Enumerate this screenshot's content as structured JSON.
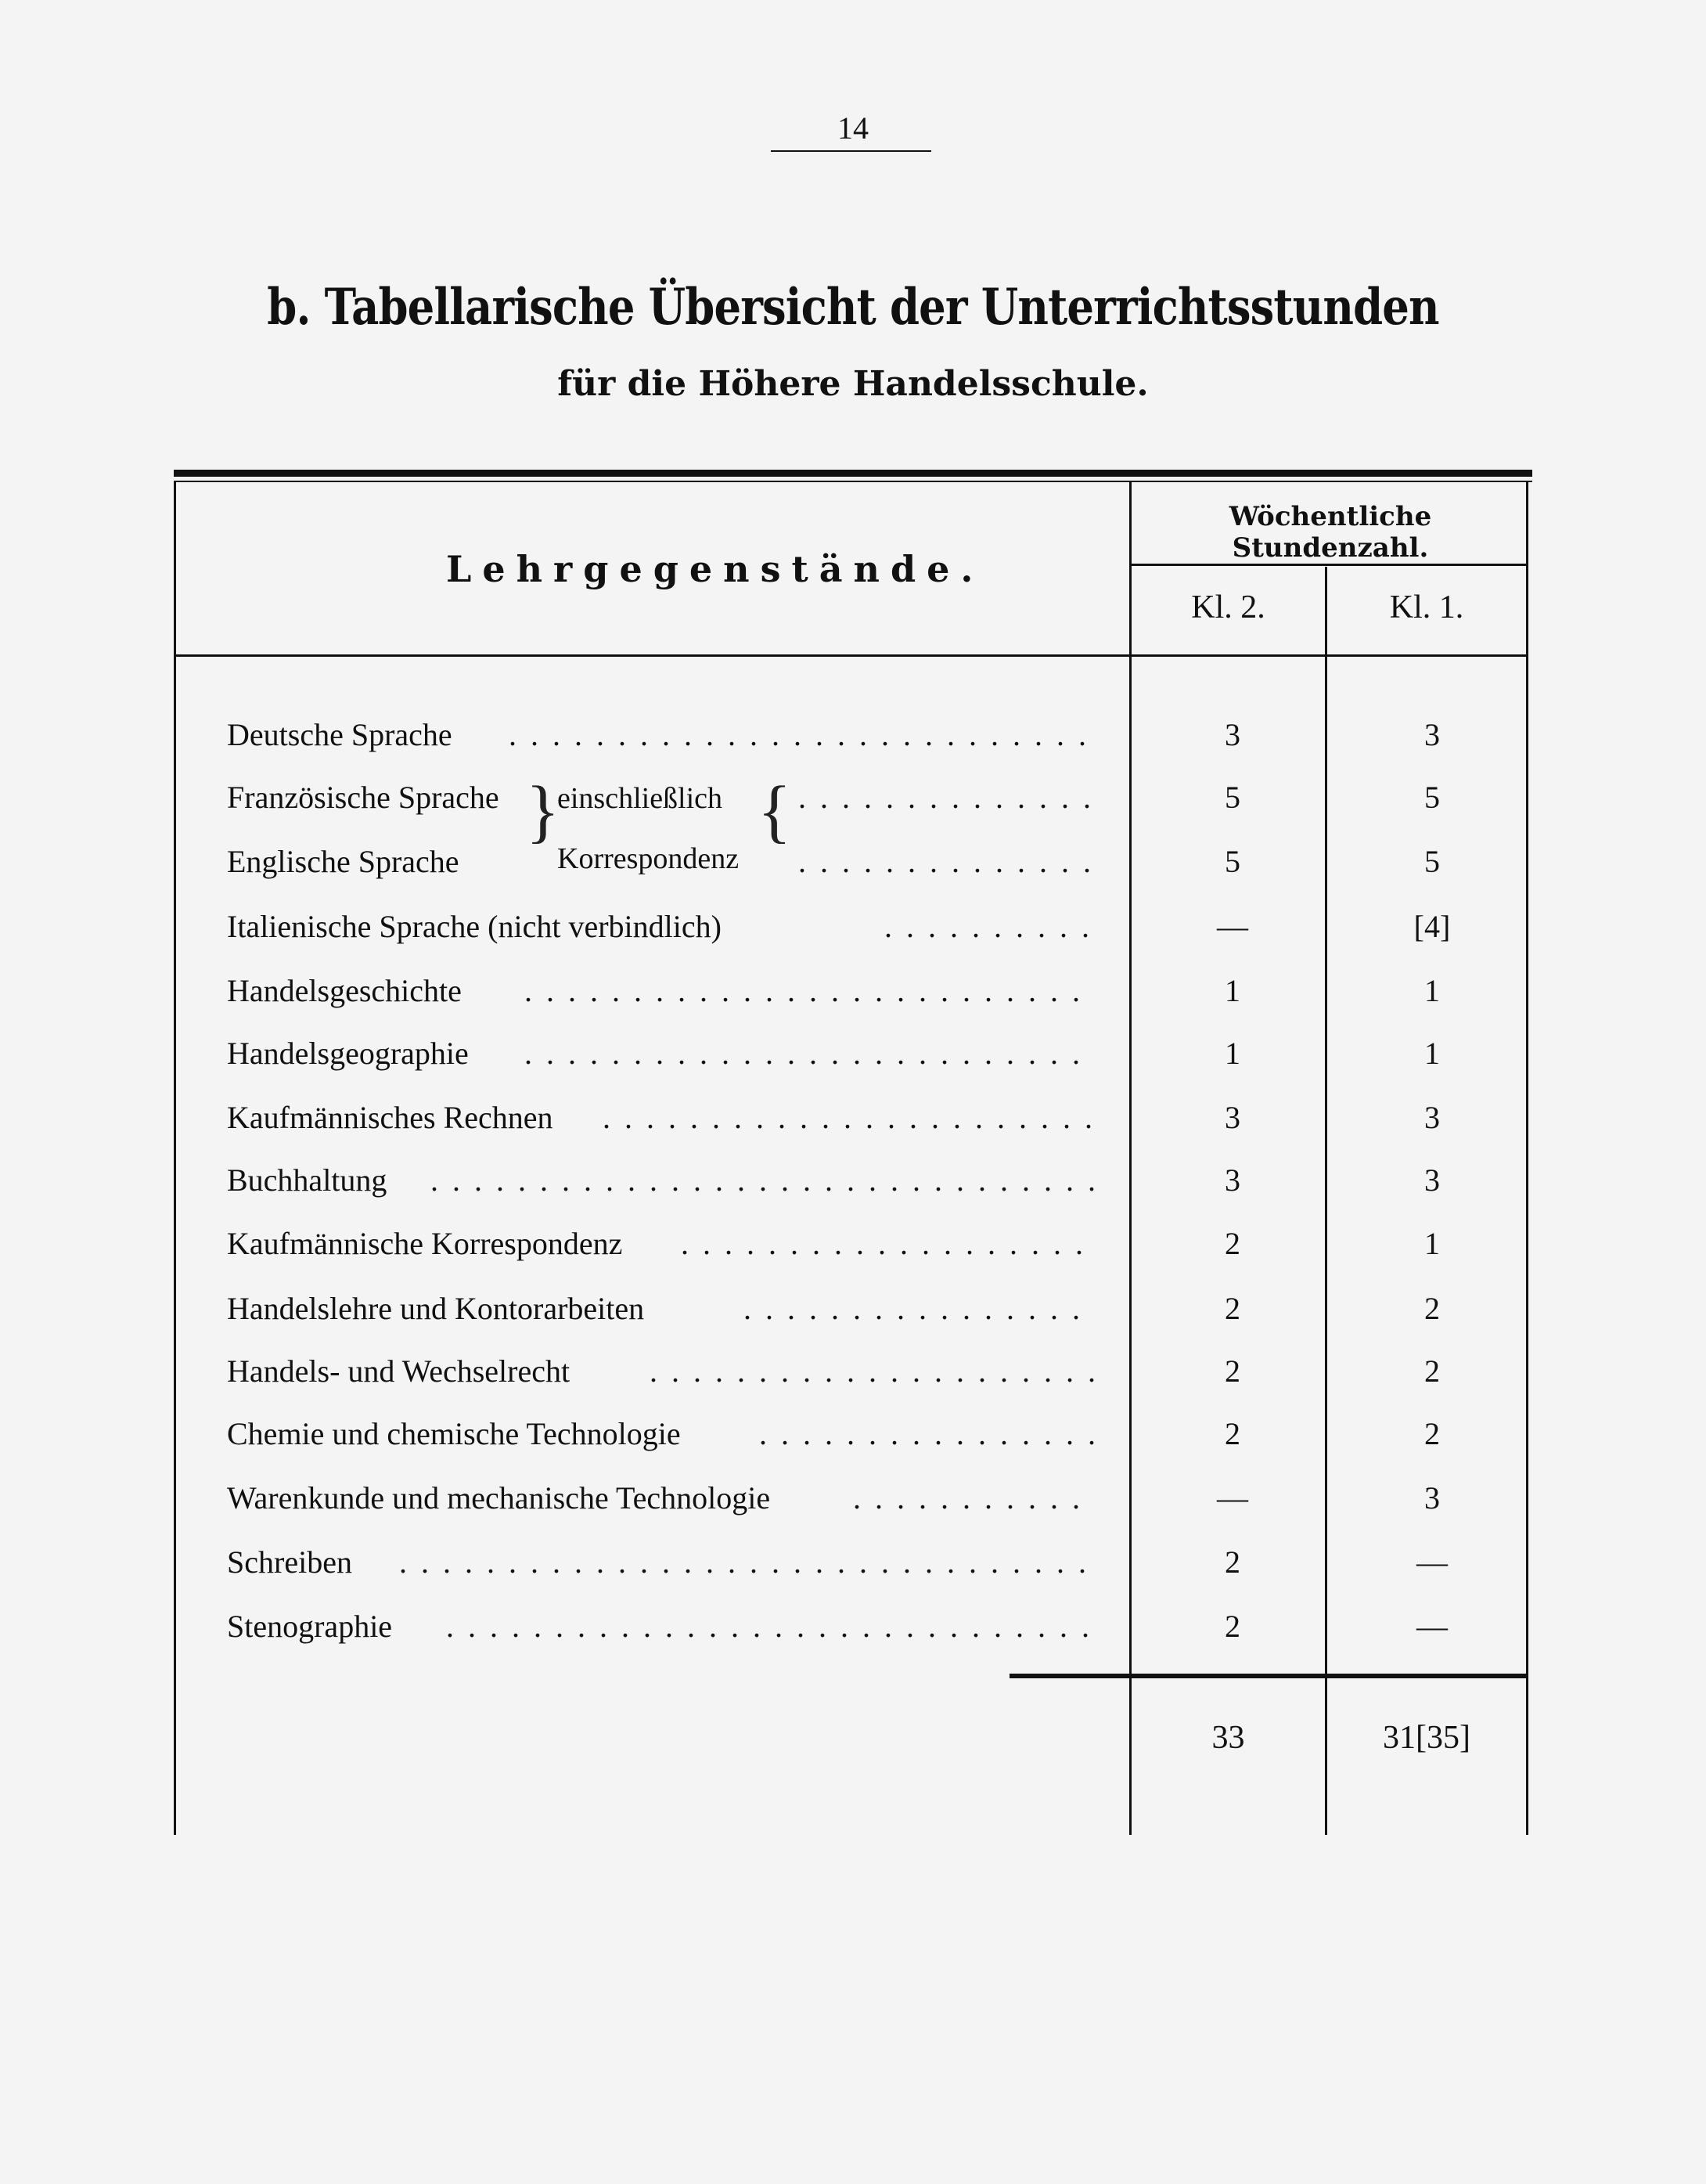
{
  "page_number": "14",
  "title": "b. Tabellarische Übersicht der Unterrichtsstunden",
  "subtitle": "für die Höhere Handelsschule.",
  "table": {
    "subject_header": "Lehrgegenstände.",
    "hours_header": "Wöchentliche Stundenzahl.",
    "columns": [
      "Kl. 2.",
      "Kl. 1."
    ],
    "brace_note": [
      "einschließlich",
      "Korrespondenz"
    ],
    "rows": [
      {
        "subject": "Deutsche Sprache",
        "kl2": "3",
        "kl1": "3"
      },
      {
        "subject": "Französische Sprache",
        "kl2": "5",
        "kl1": "5"
      },
      {
        "subject": "Englische Sprache",
        "kl2": "5",
        "kl1": "5"
      },
      {
        "subject": "Italienische Sprache (nicht verbindlich)",
        "kl2": "—",
        "kl1": "[4]"
      },
      {
        "subject": "Handelsgeschichte",
        "kl2": "1",
        "kl1": "1"
      },
      {
        "subject": "Handelsgeographie",
        "kl2": "1",
        "kl1": "1"
      },
      {
        "subject": "Kaufmännisches Rechnen",
        "kl2": "3",
        "kl1": "3"
      },
      {
        "subject": "Buchhaltung",
        "kl2": "3",
        "kl1": "3"
      },
      {
        "subject": "Kaufmännische Korrespondenz",
        "kl2": "2",
        "kl1": "1"
      },
      {
        "subject": "Handelslehre und Kontorarbeiten",
        "kl2": "2",
        "kl1": "2"
      },
      {
        "subject": "Handels- und Wechselrecht",
        "kl2": "2",
        "kl1": "2"
      },
      {
        "subject": "Chemie und chemische Technologie",
        "kl2": "2",
        "kl1": "2"
      },
      {
        "subject": "Warenkunde und mechanische Technologie",
        "kl2": "—",
        "kl1": "3"
      },
      {
        "subject": "Schreiben",
        "kl2": "2",
        "kl1": "—"
      },
      {
        "subject": "Stenographie",
        "kl2": "2",
        "kl1": "—"
      }
    ],
    "totals": {
      "kl2": "33",
      "kl1": "31[35]"
    }
  }
}
